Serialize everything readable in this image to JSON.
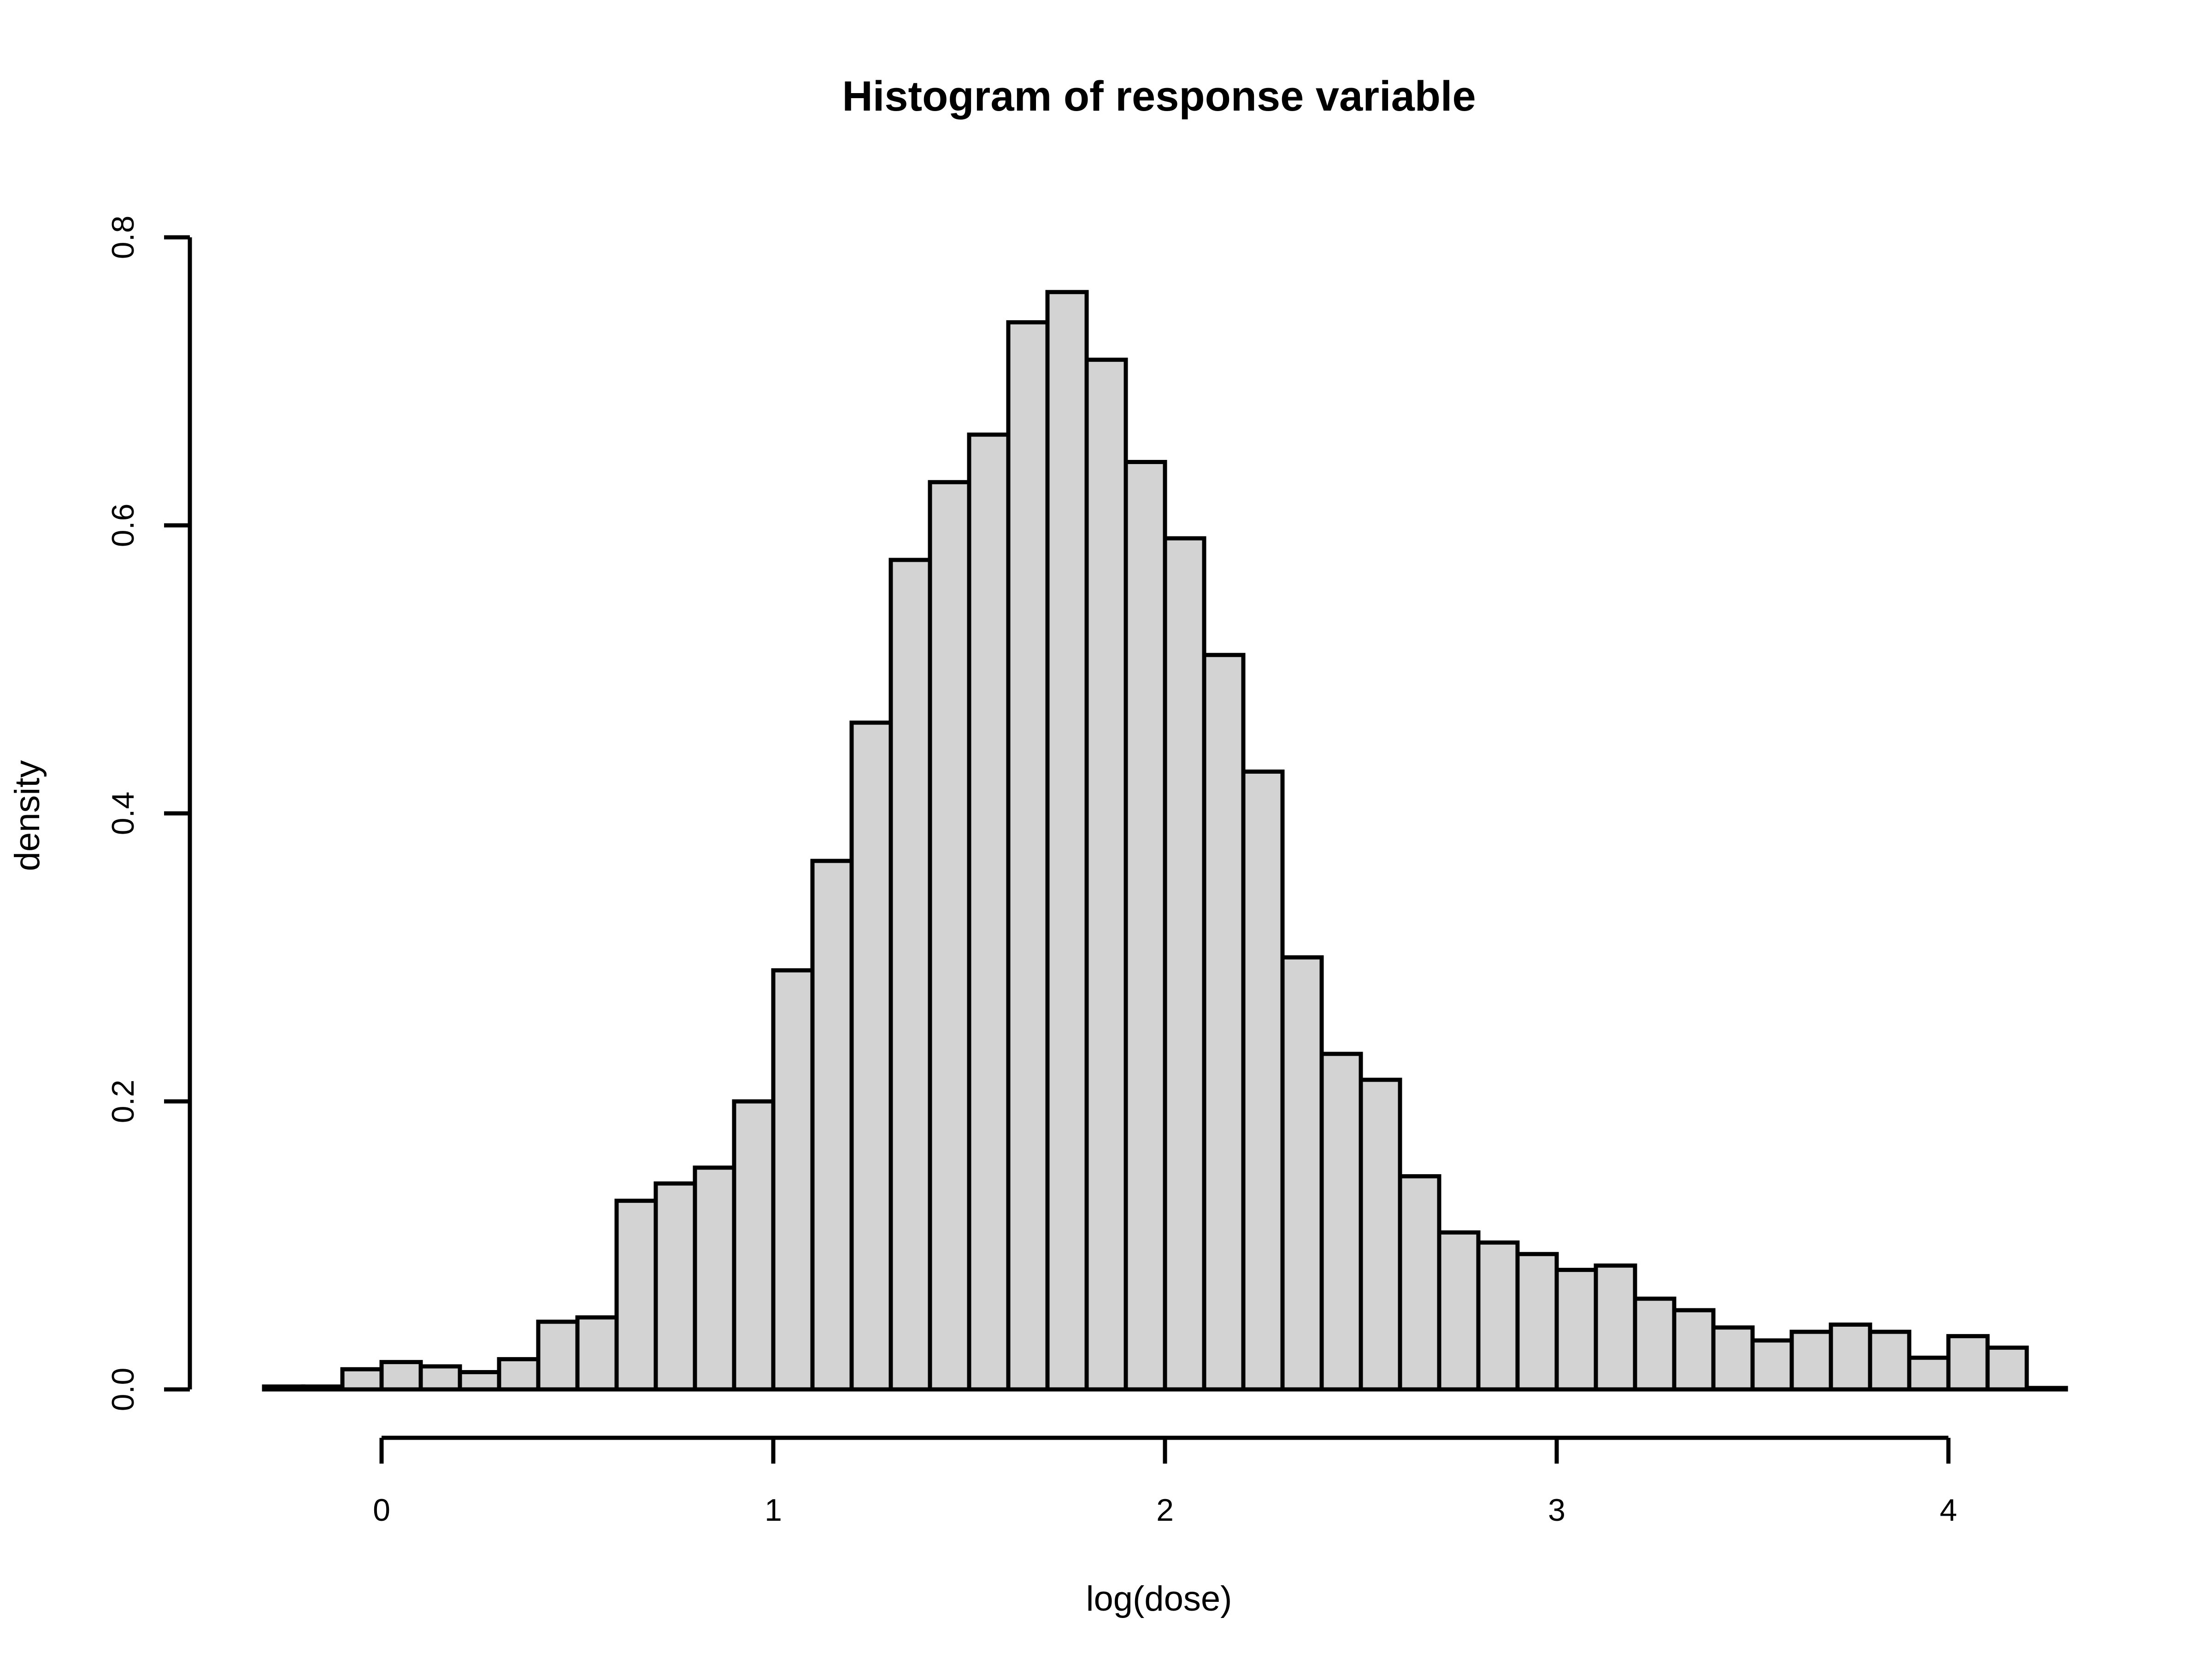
{
  "chart_data": {
    "type": "bar",
    "title": "Histogram of response variable",
    "xlabel": "log(dose)",
    "ylabel": "density",
    "bin_width": 0.1,
    "bin_start": -0.3,
    "bar_fill": "#d3d3d3",
    "bar_stroke": "#000000",
    "xlim": [
      -0.3,
      4.3
    ],
    "ylim": [
      0,
      0.8
    ],
    "x_ticks": [
      0,
      1,
      2,
      3,
      4
    ],
    "x_tick_labels": [
      "0",
      "1",
      "2",
      "3",
      "4"
    ],
    "y_ticks": [
      0,
      0.2,
      0.4,
      0.6,
      0.8
    ],
    "y_tick_labels": [
      "0.0",
      "0.2",
      "0.4",
      "0.6",
      "0.8"
    ],
    "grid": false,
    "values": [
      0.002,
      0.002,
      0.014,
      0.019,
      0.016,
      0.012,
      0.021,
      0.047,
      0.05,
      0.131,
      0.143,
      0.154,
      0.2,
      0.291,
      0.367,
      0.463,
      0.576,
      0.63,
      0.663,
      0.741,
      0.762,
      0.715,
      0.644,
      0.591,
      0.51,
      0.429,
      0.3,
      0.233,
      0.215,
      0.148,
      0.109,
      0.102,
      0.094,
      0.083,
      0.086,
      0.063,
      0.055,
      0.043,
      0.034,
      0.04,
      0.045,
      0.04,
      0.022,
      0.037,
      0.029,
      0.001
    ]
  }
}
